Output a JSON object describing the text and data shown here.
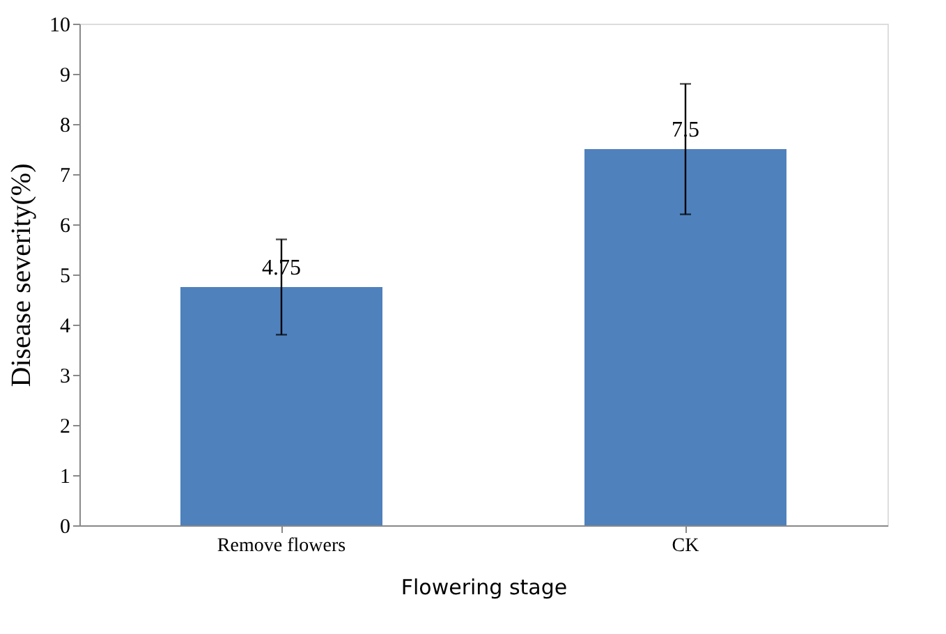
{
  "chart_data": {
    "type": "bar",
    "xlabel": "Flowering stage",
    "ylabel": "Disease severity(%)",
    "categories": [
      "Remove flowers",
      "CK"
    ],
    "values": [
      4.75,
      7.5
    ],
    "errors": [
      0.95,
      1.3
    ],
    "color": "#4f81bd",
    "ylim": [
      0,
      10
    ],
    "yticks": [
      0,
      1,
      2,
      3,
      4,
      5,
      6,
      7,
      8,
      9,
      10
    ],
    "data_labels": true,
    "grid": false
  }
}
